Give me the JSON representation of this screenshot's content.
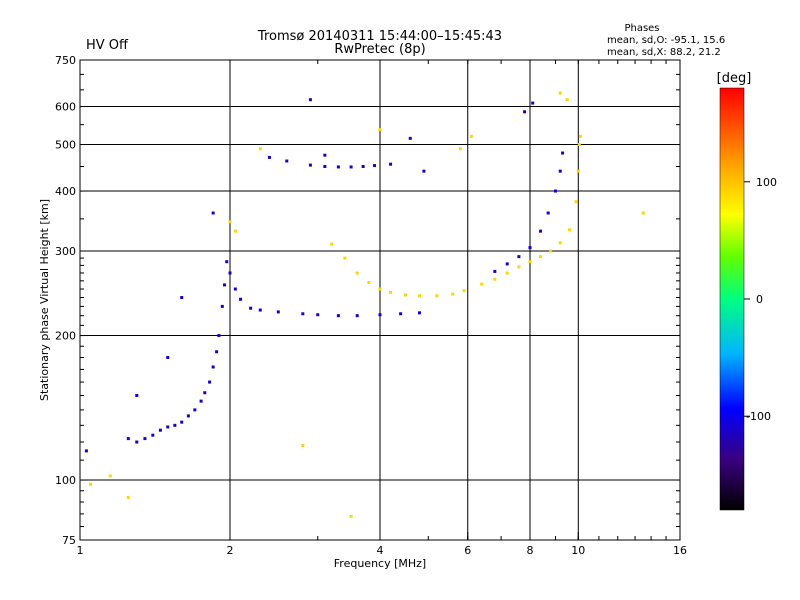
{
  "header": {
    "status": "HV Off",
    "status_color": "#d40000",
    "title_line1": "Tromsø 20140311 15:44:00–15:45:43",
    "title_line2": "RwPretec (8p)",
    "phase_title": "Phases",
    "phase_o": "mean, sd,O: -95.1, 15.6",
    "phase_x": "mean, sd,X:  88.2, 21.2"
  },
  "chart_data": {
    "type": "scatter",
    "xlabel": "Frequency [MHz]",
    "ylabel": "Stationary phase Virtual Height [km]",
    "x_scale": "log",
    "y_scale": "log",
    "xlim": [
      1,
      16
    ],
    "ylim": [
      75,
      750
    ],
    "x_ticks": [
      1,
      2,
      4,
      6,
      8,
      10,
      16
    ],
    "y_ticks": [
      75,
      100,
      200,
      300,
      400,
      500,
      600,
      750
    ],
    "grid_x": [
      2,
      4,
      6,
      8,
      10
    ],
    "grid_y": [
      100,
      200,
      300,
      400,
      500,
      600
    ],
    "colorbar": {
      "label": "[deg]",
      "range": [
        -180,
        180
      ],
      "ticks": [
        100,
        0,
        -100
      ]
    },
    "series": [
      {
        "mode": "O",
        "phase": -110,
        "points": [
          [
            1.25,
            122
          ],
          [
            1.3,
            120
          ],
          [
            1.35,
            122
          ],
          [
            1.4,
            124
          ],
          [
            1.45,
            127
          ],
          [
            1.5,
            129
          ],
          [
            1.55,
            130
          ],
          [
            1.6,
            132
          ],
          [
            1.65,
            136
          ],
          [
            1.7,
            140
          ],
          [
            1.75,
            146
          ],
          [
            1.78,
            152
          ],
          [
            1.82,
            160
          ],
          [
            1.85,
            172
          ],
          [
            1.88,
            185
          ],
          [
            1.9,
            200
          ],
          [
            1.93,
            230
          ],
          [
            1.95,
            255
          ],
          [
            1.97,
            285
          ],
          [
            2.0,
            270
          ],
          [
            2.05,
            250
          ],
          [
            2.1,
            238
          ],
          [
            2.2,
            228
          ],
          [
            2.3,
            226
          ],
          [
            2.5,
            224
          ],
          [
            2.8,
            222
          ],
          [
            3.0,
            221
          ],
          [
            3.3,
            220
          ],
          [
            3.6,
            220
          ],
          [
            4.0,
            221
          ],
          [
            4.4,
            222
          ],
          [
            4.8,
            223
          ],
          [
            2.4,
            470
          ],
          [
            2.6,
            462
          ],
          [
            2.9,
            453
          ],
          [
            3.1,
            450
          ],
          [
            3.3,
            449
          ],
          [
            3.5,
            449
          ],
          [
            3.7,
            450
          ],
          [
            3.9,
            452
          ],
          [
            6.8,
            272
          ],
          [
            7.2,
            282
          ],
          [
            7.6,
            292
          ],
          [
            8.0,
            305
          ],
          [
            8.4,
            330
          ],
          [
            8.7,
            360
          ],
          [
            9.0,
            400
          ],
          [
            9.2,
            440
          ],
          [
            9.3,
            480
          ],
          [
            1.3,
            150
          ],
          [
            1.5,
            180
          ],
          [
            1.6,
            240
          ],
          [
            1.85,
            360
          ],
          [
            2.9,
            620
          ],
          [
            1.03,
            115
          ],
          [
            3.1,
            475
          ],
          [
            4.2,
            455
          ],
          [
            4.6,
            515
          ],
          [
            4.9,
            440
          ],
          [
            7.8,
            585
          ],
          [
            8.1,
            610
          ]
        ]
      },
      {
        "mode": "X",
        "phase": 90,
        "points": [
          [
            3.2,
            310
          ],
          [
            3.4,
            290
          ],
          [
            3.6,
            270
          ],
          [
            3.8,
            258
          ],
          [
            4.0,
            250
          ],
          [
            4.2,
            246
          ],
          [
            4.5,
            243
          ],
          [
            4.8,
            242
          ],
          [
            5.2,
            242
          ],
          [
            5.6,
            244
          ],
          [
            5.9,
            248
          ],
          [
            6.4,
            256
          ],
          [
            6.8,
            262
          ],
          [
            7.2,
            270
          ],
          [
            7.6,
            278
          ],
          [
            8.0,
            285
          ],
          [
            8.4,
            292
          ],
          [
            8.8,
            300
          ],
          [
            9.2,
            312
          ],
          [
            9.6,
            332
          ],
          [
            9.9,
            380
          ],
          [
            10.0,
            440
          ],
          [
            10.05,
            500
          ],
          [
            10.1,
            520
          ],
          [
            2.0,
            345
          ],
          [
            2.05,
            330
          ],
          [
            5.8,
            490
          ],
          [
            4.0,
            537
          ],
          [
            1.15,
            102
          ],
          [
            1.05,
            98
          ],
          [
            1.25,
            92
          ],
          [
            2.8,
            118
          ],
          [
            3.5,
            84
          ],
          [
            9.5,
            620
          ],
          [
            9.2,
            640
          ],
          [
            13.5,
            360
          ],
          [
            6.1,
            520
          ],
          [
            2.3,
            490
          ]
        ]
      }
    ]
  }
}
